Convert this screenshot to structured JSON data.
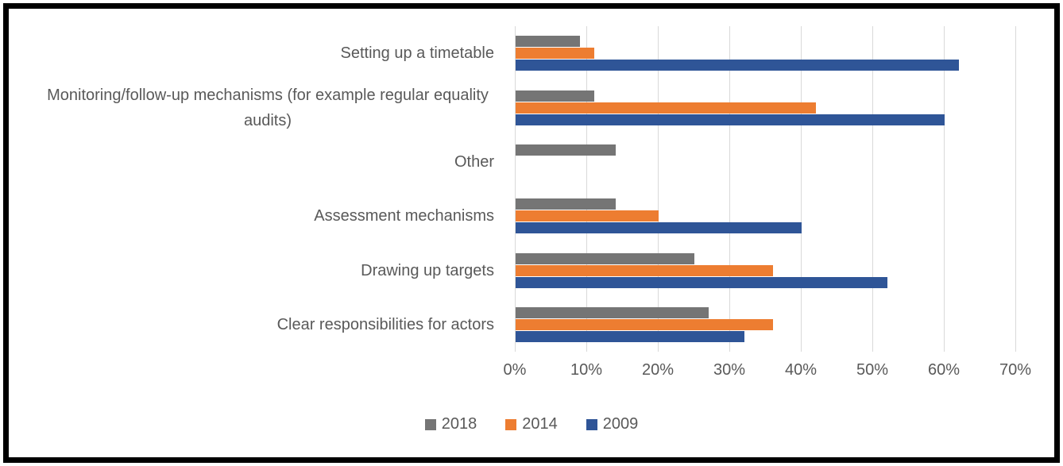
{
  "chart_data": {
    "type": "bar",
    "orientation": "horizontal",
    "title": "",
    "xlabel": "",
    "ylabel": "",
    "categories": [
      "Setting up a timetable",
      "Monitoring/follow-up mechanisms (for example regular equality audits)",
      "Other",
      "Assessment mechanisms",
      "Drawing up targets",
      "Clear responsibilities for actors"
    ],
    "series": [
      {
        "name": "2018",
        "color": "#757575",
        "values": [
          9,
          11,
          14,
          14,
          25,
          27
        ]
      },
      {
        "name": "2014",
        "color": "#ED7D31",
        "values": [
          11,
          42,
          0,
          20,
          36,
          36
        ]
      },
      {
        "name": "2009",
        "color": "#2F5597",
        "values": [
          62,
          60,
          0,
          40,
          52,
          32
        ]
      }
    ],
    "x_axis": {
      "min": 0,
      "max": 70,
      "tick_step": 10,
      "tick_labels": [
        "0%",
        "10%",
        "20%",
        "30%",
        "40%",
        "50%",
        "60%",
        "70%"
      ]
    },
    "grid": "vertical-only",
    "legend": {
      "position": "bottom",
      "entries": [
        "2018",
        "2014",
        "2009"
      ]
    }
  },
  "colors": {
    "background": "#FFFFFF",
    "border": "#000000",
    "gridline": "#D9D9D9",
    "axis_text": "#595959",
    "category_text": "#595959",
    "legend_text": "#595959"
  }
}
